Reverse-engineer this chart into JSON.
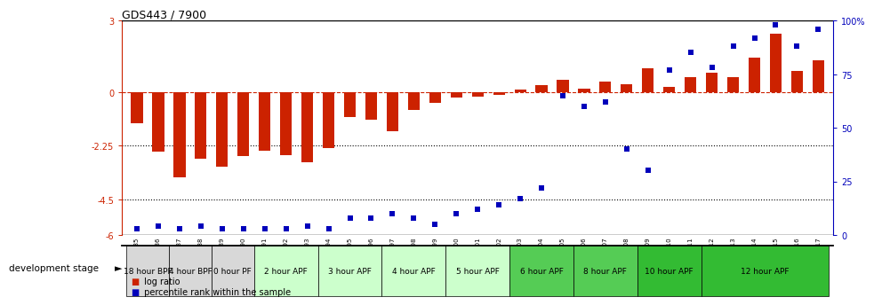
{
  "title": "GDS443 / 7900",
  "samples": [
    "GSM4585",
    "GSM4586",
    "GSM4587",
    "GSM4588",
    "GSM4589",
    "GSM4590",
    "GSM4591",
    "GSM4592",
    "GSM4593",
    "GSM4594",
    "GSM4595",
    "GSM4596",
    "GSM4597",
    "GSM4598",
    "GSM4599",
    "GSM4600",
    "GSM4601",
    "GSM4602",
    "GSM4603",
    "GSM4604",
    "GSM4605",
    "GSM4606",
    "GSM4607",
    "GSM4608",
    "GSM4609",
    "GSM4610",
    "GSM4611",
    "GSM4612",
    "GSM4613",
    "GSM4614",
    "GSM4615",
    "GSM4616",
    "GSM4617"
  ],
  "log_ratios": [
    -1.3,
    -2.5,
    -3.6,
    -2.8,
    -3.15,
    -2.7,
    -2.45,
    -2.65,
    -2.95,
    -2.35,
    -1.05,
    -1.15,
    -1.65,
    -0.75,
    -0.45,
    -0.25,
    -0.2,
    -0.12,
    0.12,
    0.3,
    0.5,
    0.15,
    0.42,
    0.32,
    1.0,
    0.22,
    0.62,
    0.82,
    0.62,
    1.45,
    2.45,
    0.9,
    1.35
  ],
  "percentile_ranks": [
    3,
    4,
    3,
    4,
    3,
    3,
    3,
    3,
    4,
    3,
    8,
    8,
    10,
    8,
    5,
    10,
    12,
    14,
    17,
    22,
    65,
    60,
    62,
    40,
    30,
    77,
    85,
    78,
    88,
    92,
    98,
    88,
    96
  ],
  "bar_color": "#cc2200",
  "dot_color": "#0000bb",
  "ylim_left": [
    -6.0,
    3.0
  ],
  "ylim_right": [
    0,
    100
  ],
  "yticks_left": [
    -6,
    -4.5,
    -2.25,
    0,
    3
  ],
  "yticks_left_labels": [
    "-6",
    "-4.5",
    "-2.25",
    "0",
    "3"
  ],
  "yticks_right": [
    0,
    25,
    50,
    75,
    100
  ],
  "yticks_right_labels": [
    "0",
    "25",
    "50",
    "75",
    "100%"
  ],
  "hlines": [
    {
      "y": 0.0,
      "color": "#cc2200",
      "ls": "dashed",
      "lw": 0.8
    },
    {
      "y": -2.25,
      "color": "black",
      "ls": "dotted",
      "lw": 0.8
    },
    {
      "y": -4.5,
      "color": "black",
      "ls": "dotted",
      "lw": 0.8
    }
  ],
  "stages": [
    {
      "label": "18 hour BPF",
      "start": 0,
      "end": 2,
      "color": "#d8d8d8",
      "n": 2
    },
    {
      "label": "4 hour BPF",
      "start": 2,
      "end": 4,
      "color": "#d8d8d8",
      "n": 2
    },
    {
      "label": "0 hour PF",
      "start": 4,
      "end": 6,
      "color": "#d8d8d8",
      "n": 2
    },
    {
      "label": "2 hour APF",
      "start": 6,
      "end": 9,
      "color": "#ccffcc",
      "n": 3
    },
    {
      "label": "3 hour APF",
      "start": 9,
      "end": 12,
      "color": "#ccffcc",
      "n": 3
    },
    {
      "label": "4 hour APF",
      "start": 12,
      "end": 15,
      "color": "#ccffcc",
      "n": 3
    },
    {
      "label": "5 hour APF",
      "start": 15,
      "end": 18,
      "color": "#ccffcc",
      "n": 3
    },
    {
      "label": "6 hour APF",
      "start": 18,
      "end": 21,
      "color": "#55cc55",
      "n": 3
    },
    {
      "label": "8 hour APF",
      "start": 21,
      "end": 24,
      "color": "#55cc55",
      "n": 3
    },
    {
      "label": "10 hour APF",
      "start": 24,
      "end": 27,
      "color": "#33bb33",
      "n": 3
    },
    {
      "label": "12 hour APF",
      "start": 27,
      "end": 33,
      "color": "#33bb33",
      "n": 6
    }
  ],
  "bar_width": 0.55,
  "dot_size": 16
}
